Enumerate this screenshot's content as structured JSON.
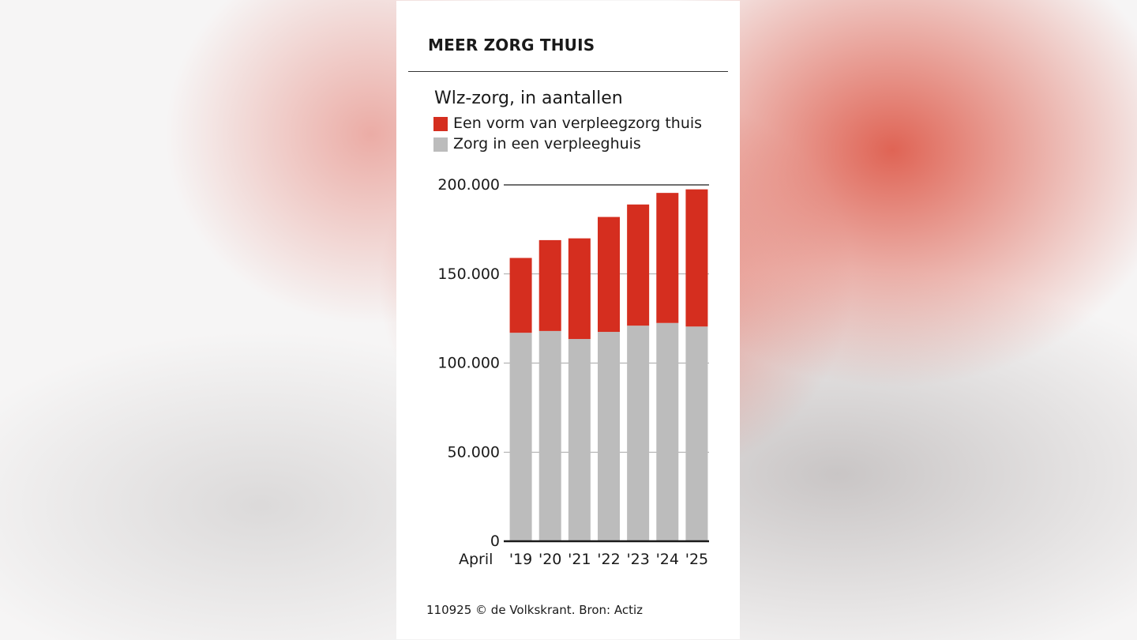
{
  "header": {
    "title": "MEER ZORG THUIS"
  },
  "source": "110925 © de Volkskrant. Bron: Actiz",
  "colors": {
    "home_care": "#d52e1f",
    "nursing_home": "#bcbcbc",
    "axis": "#1a1a1a",
    "grid": "#8a8a8a"
  },
  "chart_data": {
    "type": "bar",
    "stacked": true,
    "title": "Wlz-zorg, in aantallen",
    "xlabel": "April",
    "ylabel": "",
    "categories": [
      "'19",
      "'20",
      "'21",
      "'22",
      "'23",
      "'24",
      "'25"
    ],
    "series": [
      {
        "name": "Zorg in een verpleeghuis",
        "color": "#bcbcbc",
        "values": [
          117000,
          118000,
          113500,
          117500,
          121000,
          122500,
          120500
        ]
      },
      {
        "name": "Een vorm van verpleegzorg thuis",
        "color": "#d52e1f",
        "values": [
          42000,
          51000,
          56500,
          64500,
          68000,
          73000,
          77000
        ]
      }
    ],
    "legend_order": [
      "Een vorm van verpleegzorg thuis",
      "Zorg in een verpleeghuis"
    ],
    "yticks": [
      0,
      50000,
      100000,
      150000,
      200000
    ],
    "ytick_labels": [
      "0",
      "50.000",
      "100.000",
      "150.000",
      "200.000"
    ],
    "ylim": [
      0,
      200000
    ],
    "grid": true,
    "legend_position": "top-left"
  }
}
